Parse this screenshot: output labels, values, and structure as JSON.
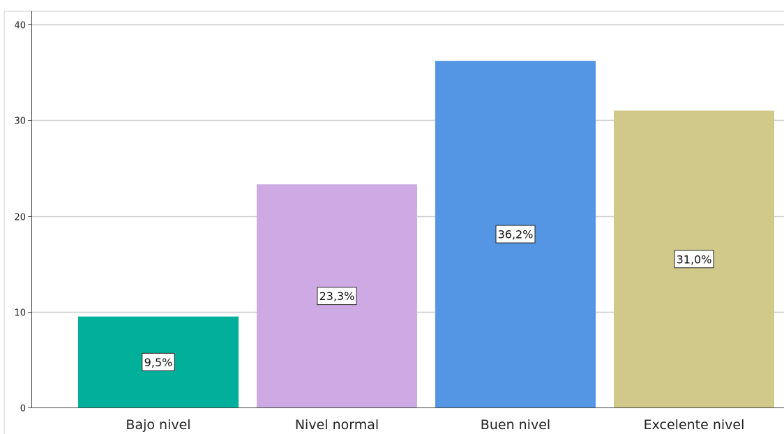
{
  "chart_data": {
    "type": "bar",
    "categories": [
      "Bajo nivel",
      "Nivel normal",
      "Buen nivel",
      "Excelente nivel"
    ],
    "values": [
      9.5,
      23.3,
      36.2,
      31.0
    ],
    "data_labels": [
      "9,5%",
      "23,3%",
      "36,2%",
      "31,0%"
    ],
    "colors": [
      "#00b09b",
      "#cdaae4",
      "#5596e4",
      "#d0c98a"
    ],
    "ylim": [
      0,
      40
    ],
    "yticks": [
      0,
      10,
      20,
      30,
      40
    ],
    "title": "",
    "xlabel": "",
    "ylabel": "",
    "grid": true
  }
}
